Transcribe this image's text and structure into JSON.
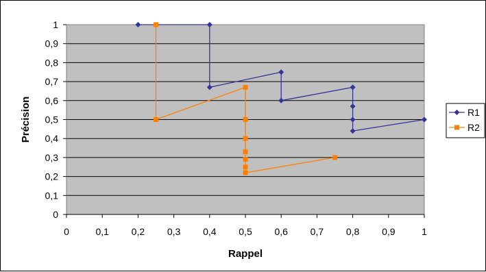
{
  "chart_data": {
    "type": "line",
    "title": "",
    "xlabel": "Rappel",
    "ylabel": "Précision",
    "xlim": [
      0,
      1
    ],
    "ylim": [
      0,
      1
    ],
    "xticks": [
      "0",
      "0,1",
      "0,2",
      "0,3",
      "0,4",
      "0,5",
      "0,6",
      "0,7",
      "0,8",
      "0,9",
      "1"
    ],
    "yticks": [
      "0",
      "0,1",
      "0,2",
      "0,3",
      "0,4",
      "0,5",
      "0,6",
      "0,7",
      "0,8",
      "0,9",
      "1"
    ],
    "grid": "horizontal",
    "legend_position": "right",
    "plot_background": "#c0c0c0",
    "series": [
      {
        "name": "R1",
        "color": "#333399",
        "marker": "diamond",
        "points": [
          [
            0.2,
            1.0
          ],
          [
            0.4,
            1.0
          ],
          [
            0.4,
            0.67
          ],
          [
            0.6,
            0.75
          ],
          [
            0.6,
            0.6
          ],
          [
            0.8,
            0.67
          ],
          [
            0.8,
            0.57
          ],
          [
            0.8,
            0.5
          ],
          [
            0.8,
            0.44
          ],
          [
            1.0,
            0.5
          ]
        ]
      },
      {
        "name": "R2",
        "color": "#ff8000",
        "marker": "square",
        "points": [
          [
            0.25,
            1.0
          ],
          [
            0.25,
            0.5
          ],
          [
            0.5,
            0.67
          ],
          [
            0.5,
            0.5
          ],
          [
            0.5,
            0.4
          ],
          [
            0.5,
            0.33
          ],
          [
            0.5,
            0.29
          ],
          [
            0.5,
            0.25
          ],
          [
            0.5,
            0.22
          ],
          [
            0.75,
            0.3
          ]
        ]
      }
    ]
  }
}
